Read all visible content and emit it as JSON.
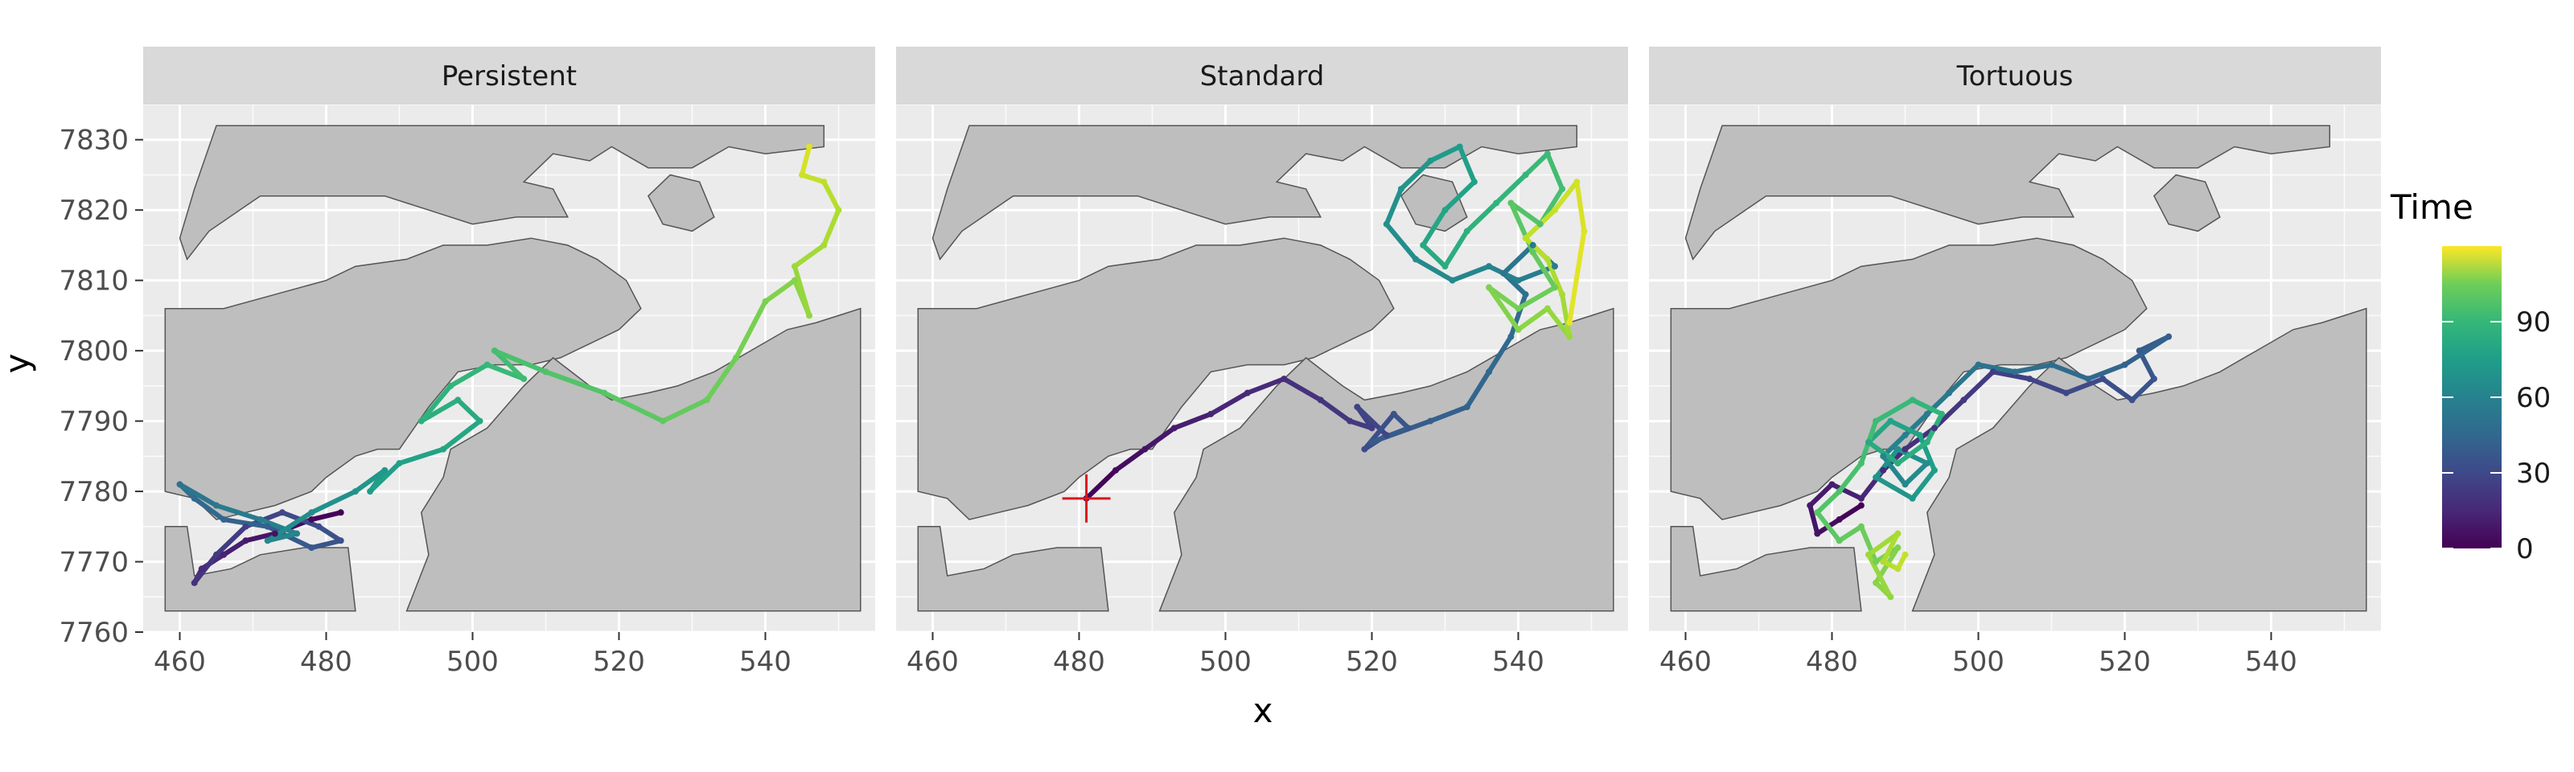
{
  "chart_data": {
    "type": "line",
    "facets": [
      "Persistent",
      "Standard",
      "Tortuous"
    ],
    "xlabel": "x",
    "ylabel": "y",
    "xlim": [
      455,
      555
    ],
    "ylim": [
      7760,
      7835
    ],
    "x_ticks": [
      460,
      480,
      500,
      520,
      540
    ],
    "y_ticks": [
      7760,
      7770,
      7780,
      7790,
      7800,
      7810,
      7820,
      7830
    ],
    "grid": true,
    "legend": {
      "title": "Time",
      "position": "right",
      "type": "colorbar",
      "palette": "viridis",
      "range": [
        0,
        120
      ],
      "ticks": [
        0,
        30,
        60,
        90
      ]
    },
    "land_polygons": [
      [
        [
          465,
          7832
        ],
        [
          548,
          7832
        ],
        [
          548,
          7829
        ],
        [
          540,
          7828
        ],
        [
          535,
          7829
        ],
        [
          530,
          7826
        ],
        [
          524,
          7826
        ],
        [
          519,
          7829
        ],
        [
          516,
          7827
        ],
        [
          511,
          7828
        ],
        [
          507,
          7824
        ],
        [
          511,
          7823
        ],
        [
          513,
          7819
        ],
        [
          506,
          7819
        ],
        [
          500,
          7818
        ],
        [
          494,
          7820
        ],
        [
          488,
          7822
        ],
        [
          481,
          7822
        ],
        [
          471,
          7822
        ],
        [
          464,
          7817
        ],
        [
          461,
          7813
        ],
        [
          460,
          7816
        ],
        [
          462,
          7823
        ],
        [
          464,
          7829
        ]
      ],
      [
        [
          524,
          7822
        ],
        [
          527,
          7825
        ],
        [
          531,
          7824
        ],
        [
          533,
          7819
        ],
        [
          530,
          7817
        ],
        [
          526,
          7818
        ]
      ],
      [
        [
          458,
          7806
        ],
        [
          466,
          7806
        ],
        [
          473,
          7808
        ],
        [
          480,
          7810
        ],
        [
          484,
          7812
        ],
        [
          491,
          7813
        ],
        [
          496,
          7815
        ],
        [
          502,
          7815
        ],
        [
          508,
          7816
        ],
        [
          513,
          7815
        ],
        [
          517,
          7813
        ],
        [
          521,
          7810
        ],
        [
          523,
          7806
        ],
        [
          520,
          7803
        ],
        [
          516,
          7801
        ],
        [
          512,
          7799
        ],
        [
          508,
          7798
        ],
        [
          503,
          7798
        ],
        [
          498,
          7797
        ],
        [
          494,
          7792
        ],
        [
          490,
          7786
        ],
        [
          487,
          7786
        ],
        [
          484,
          7785
        ],
        [
          480,
          7782
        ],
        [
          478,
          7780
        ],
        [
          473,
          7778
        ],
        [
          469,
          7777
        ],
        [
          465,
          7776
        ],
        [
          462,
          7779
        ],
        [
          458,
          7780
        ]
      ],
      [
        [
          511,
          7799
        ],
        [
          516,
          7795
        ],
        [
          519,
          7793
        ],
        [
          524,
          7794
        ],
        [
          528,
          7795
        ],
        [
          533,
          7797
        ],
        [
          538,
          7800
        ],
        [
          543,
          7803
        ],
        [
          547,
          7804
        ],
        [
          550,
          7805
        ],
        [
          553,
          7806
        ],
        [
          553,
          7763
        ],
        [
          491,
          7763
        ],
        [
          494,
          7771
        ],
        [
          493,
          7777
        ],
        [
          496,
          7782
        ],
        [
          497,
          7786
        ],
        [
          502,
          7789
        ],
        [
          507,
          7795
        ]
      ],
      [
        [
          458,
          7775
        ],
        [
          461,
          7775
        ],
        [
          462,
          7768
        ],
        [
          467,
          7769
        ],
        [
          471,
          7771
        ],
        [
          477,
          7772
        ],
        [
          483,
          7772
        ],
        [
          484,
          7763
        ],
        [
          458,
          7763
        ]
      ]
    ],
    "tracks": [
      {
        "facet": "Persistent",
        "points": [
          [
            482,
            7777,
            0
          ],
          [
            478,
            7776,
            3
          ],
          [
            473,
            7774,
            6
          ],
          [
            469,
            7773,
            9
          ],
          [
            466,
            7771,
            12
          ],
          [
            463,
            7769,
            15
          ],
          [
            462,
            7767,
            17
          ],
          [
            465,
            7771,
            20
          ],
          [
            469,
            7775,
            23
          ],
          [
            474,
            7777,
            26
          ],
          [
            479,
            7775,
            29
          ],
          [
            482,
            7773,
            31
          ],
          [
            478,
            7772,
            33
          ],
          [
            472,
            7775,
            36
          ],
          [
            466,
            7776,
            39
          ],
          [
            462,
            7779,
            42
          ],
          [
            460,
            7781,
            45
          ],
          [
            465,
            7778,
            48
          ],
          [
            471,
            7776,
            51
          ],
          [
            476,
            7774,
            54
          ],
          [
            472,
            7773,
            56
          ],
          [
            478,
            7777,
            59
          ],
          [
            484,
            7780,
            62
          ],
          [
            488,
            7783,
            64
          ],
          [
            486,
            7780,
            66
          ],
          [
            490,
            7784,
            68
          ],
          [
            496,
            7786,
            70
          ],
          [
            501,
            7790,
            72
          ],
          [
            498,
            7793,
            74
          ],
          [
            493,
            7790,
            76
          ],
          [
            497,
            7795,
            78
          ],
          [
            502,
            7798,
            80
          ],
          [
            507,
            7796,
            82
          ],
          [
            503,
            7800,
            84
          ],
          [
            510,
            7797,
            86
          ],
          [
            518,
            7794,
            88
          ],
          [
            526,
            7790,
            90
          ],
          [
            532,
            7793,
            92
          ],
          [
            536,
            7799,
            94
          ],
          [
            540,
            7807,
            96
          ],
          [
            544,
            7810,
            98
          ],
          [
            546,
            7805,
            100
          ],
          [
            544,
            7812,
            102
          ],
          [
            548,
            7815,
            104
          ],
          [
            550,
            7820,
            106
          ],
          [
            548,
            7824,
            108
          ],
          [
            545,
            7825,
            111
          ],
          [
            546,
            7829,
            114
          ]
        ]
      },
      {
        "facet": "Standard",
        "points": [
          [
            481,
            7779,
            0
          ],
          [
            485,
            7783,
            3
          ],
          [
            489,
            7786,
            6
          ],
          [
            493,
            7789,
            9
          ],
          [
            498,
            7791,
            12
          ],
          [
            503,
            7794,
            14
          ],
          [
            508,
            7796,
            16
          ],
          [
            513,
            7793,
            18
          ],
          [
            517,
            7790,
            20
          ],
          [
            520,
            7789,
            22
          ],
          [
            518,
            7792,
            24
          ],
          [
            522,
            7788,
            26
          ],
          [
            519,
            7786,
            28
          ],
          [
            523,
            7791,
            30
          ],
          [
            525,
            7789,
            32
          ],
          [
            520,
            7787,
            34
          ],
          [
            528,
            7790,
            36
          ],
          [
            533,
            7792,
            38
          ],
          [
            536,
            7797,
            40
          ],
          [
            539,
            7802,
            42
          ],
          [
            541,
            7808,
            44
          ],
          [
            538,
            7811,
            46
          ],
          [
            542,
            7815,
            48
          ],
          [
            545,
            7812,
            50
          ],
          [
            540,
            7810,
            52
          ],
          [
            536,
            7812,
            54
          ],
          [
            531,
            7810,
            56
          ],
          [
            526,
            7813,
            58
          ],
          [
            522,
            7818,
            60
          ],
          [
            524,
            7823,
            62
          ],
          [
            528,
            7827,
            64
          ],
          [
            532,
            7829,
            66
          ],
          [
            534,
            7824,
            68
          ],
          [
            530,
            7820,
            70
          ],
          [
            527,
            7815,
            72
          ],
          [
            530,
            7812,
            74
          ],
          [
            533,
            7817,
            76
          ],
          [
            537,
            7821,
            78
          ],
          [
            541,
            7825,
            80
          ],
          [
            544,
            7828,
            82
          ],
          [
            546,
            7823,
            84
          ],
          [
            543,
            7818,
            86
          ],
          [
            539,
            7821,
            88
          ],
          [
            542,
            7814,
            90
          ],
          [
            545,
            7809,
            92
          ],
          [
            540,
            7806,
            94
          ],
          [
            536,
            7809,
            96
          ],
          [
            540,
            7803,
            98
          ],
          [
            544,
            7806,
            100
          ],
          [
            547,
            7802,
            102
          ],
          [
            546,
            7808,
            104
          ],
          [
            544,
            7813,
            106
          ],
          [
            541,
            7816,
            108
          ],
          [
            545,
            7820,
            110
          ],
          [
            548,
            7824,
            112
          ],
          [
            549,
            7817,
            114
          ],
          [
            547,
            7804,
            116
          ]
        ]
      },
      {
        "facet": "Tortuous",
        "points": [
          [
            484,
            7778,
            0
          ],
          [
            481,
            7776,
            3
          ],
          [
            478,
            7774,
            6
          ],
          [
            477,
            7778,
            8
          ],
          [
            480,
            7781,
            10
          ],
          [
            484,
            7779,
            12
          ],
          [
            487,
            7783,
            14
          ],
          [
            490,
            7786,
            16
          ],
          [
            494,
            7789,
            18
          ],
          [
            498,
            7793,
            20
          ],
          [
            502,
            7797,
            22
          ],
          [
            507,
            7796,
            24
          ],
          [
            512,
            7794,
            26
          ],
          [
            517,
            7796,
            28
          ],
          [
            521,
            7793,
            30
          ],
          [
            524,
            7796,
            32
          ],
          [
            522,
            7800,
            34
          ],
          [
            526,
            7802,
            36
          ],
          [
            520,
            7798,
            38
          ],
          [
            515,
            7796,
            40
          ],
          [
            510,
            7798,
            42
          ],
          [
            505,
            7797,
            44
          ],
          [
            500,
            7798,
            46
          ],
          [
            496,
            7794,
            48
          ],
          [
            493,
            7791,
            50
          ],
          [
            490,
            7788,
            52
          ],
          [
            487,
            7785,
            54
          ],
          [
            490,
            7781,
            56
          ],
          [
            493,
            7784,
            58
          ],
          [
            489,
            7786,
            60
          ],
          [
            486,
            7782,
            62
          ],
          [
            491,
            7779,
            64
          ],
          [
            494,
            7783,
            66
          ],
          [
            492,
            7788,
            68
          ],
          [
            488,
            7790,
            70
          ],
          [
            485,
            7787,
            72
          ],
          [
            489,
            7784,
            74
          ],
          [
            493,
            7787,
            76
          ],
          [
            495,
            7791,
            78
          ],
          [
            491,
            7793,
            80
          ],
          [
            486,
            7790,
            82
          ],
          [
            484,
            7784,
            84
          ],
          [
            481,
            7780,
            86
          ],
          [
            478,
            7777,
            88
          ],
          [
            481,
            7773,
            90
          ],
          [
            484,
            7775,
            92
          ],
          [
            486,
            7770,
            94
          ],
          [
            489,
            7772,
            96
          ],
          [
            486,
            7767,
            98
          ],
          [
            488,
            7765,
            100
          ],
          [
            485,
            7771,
            102
          ],
          [
            489,
            7774,
            104
          ],
          [
            487,
            7770,
            106
          ],
          [
            489,
            7769,
            108
          ],
          [
            490,
            7771,
            110
          ]
        ]
      }
    ],
    "annotations": [
      {
        "facet": "Standard",
        "type": "crosshair-marker",
        "x": 481,
        "y": 7779,
        "color": "#d7191c"
      }
    ]
  },
  "colors": {
    "panel_bg": "#ebebeb",
    "strip_bg": "#d9d9d9",
    "grid": "#ffffff",
    "land": "#bebebe",
    "land_stroke": "#555555",
    "marker": "#d7191c"
  }
}
